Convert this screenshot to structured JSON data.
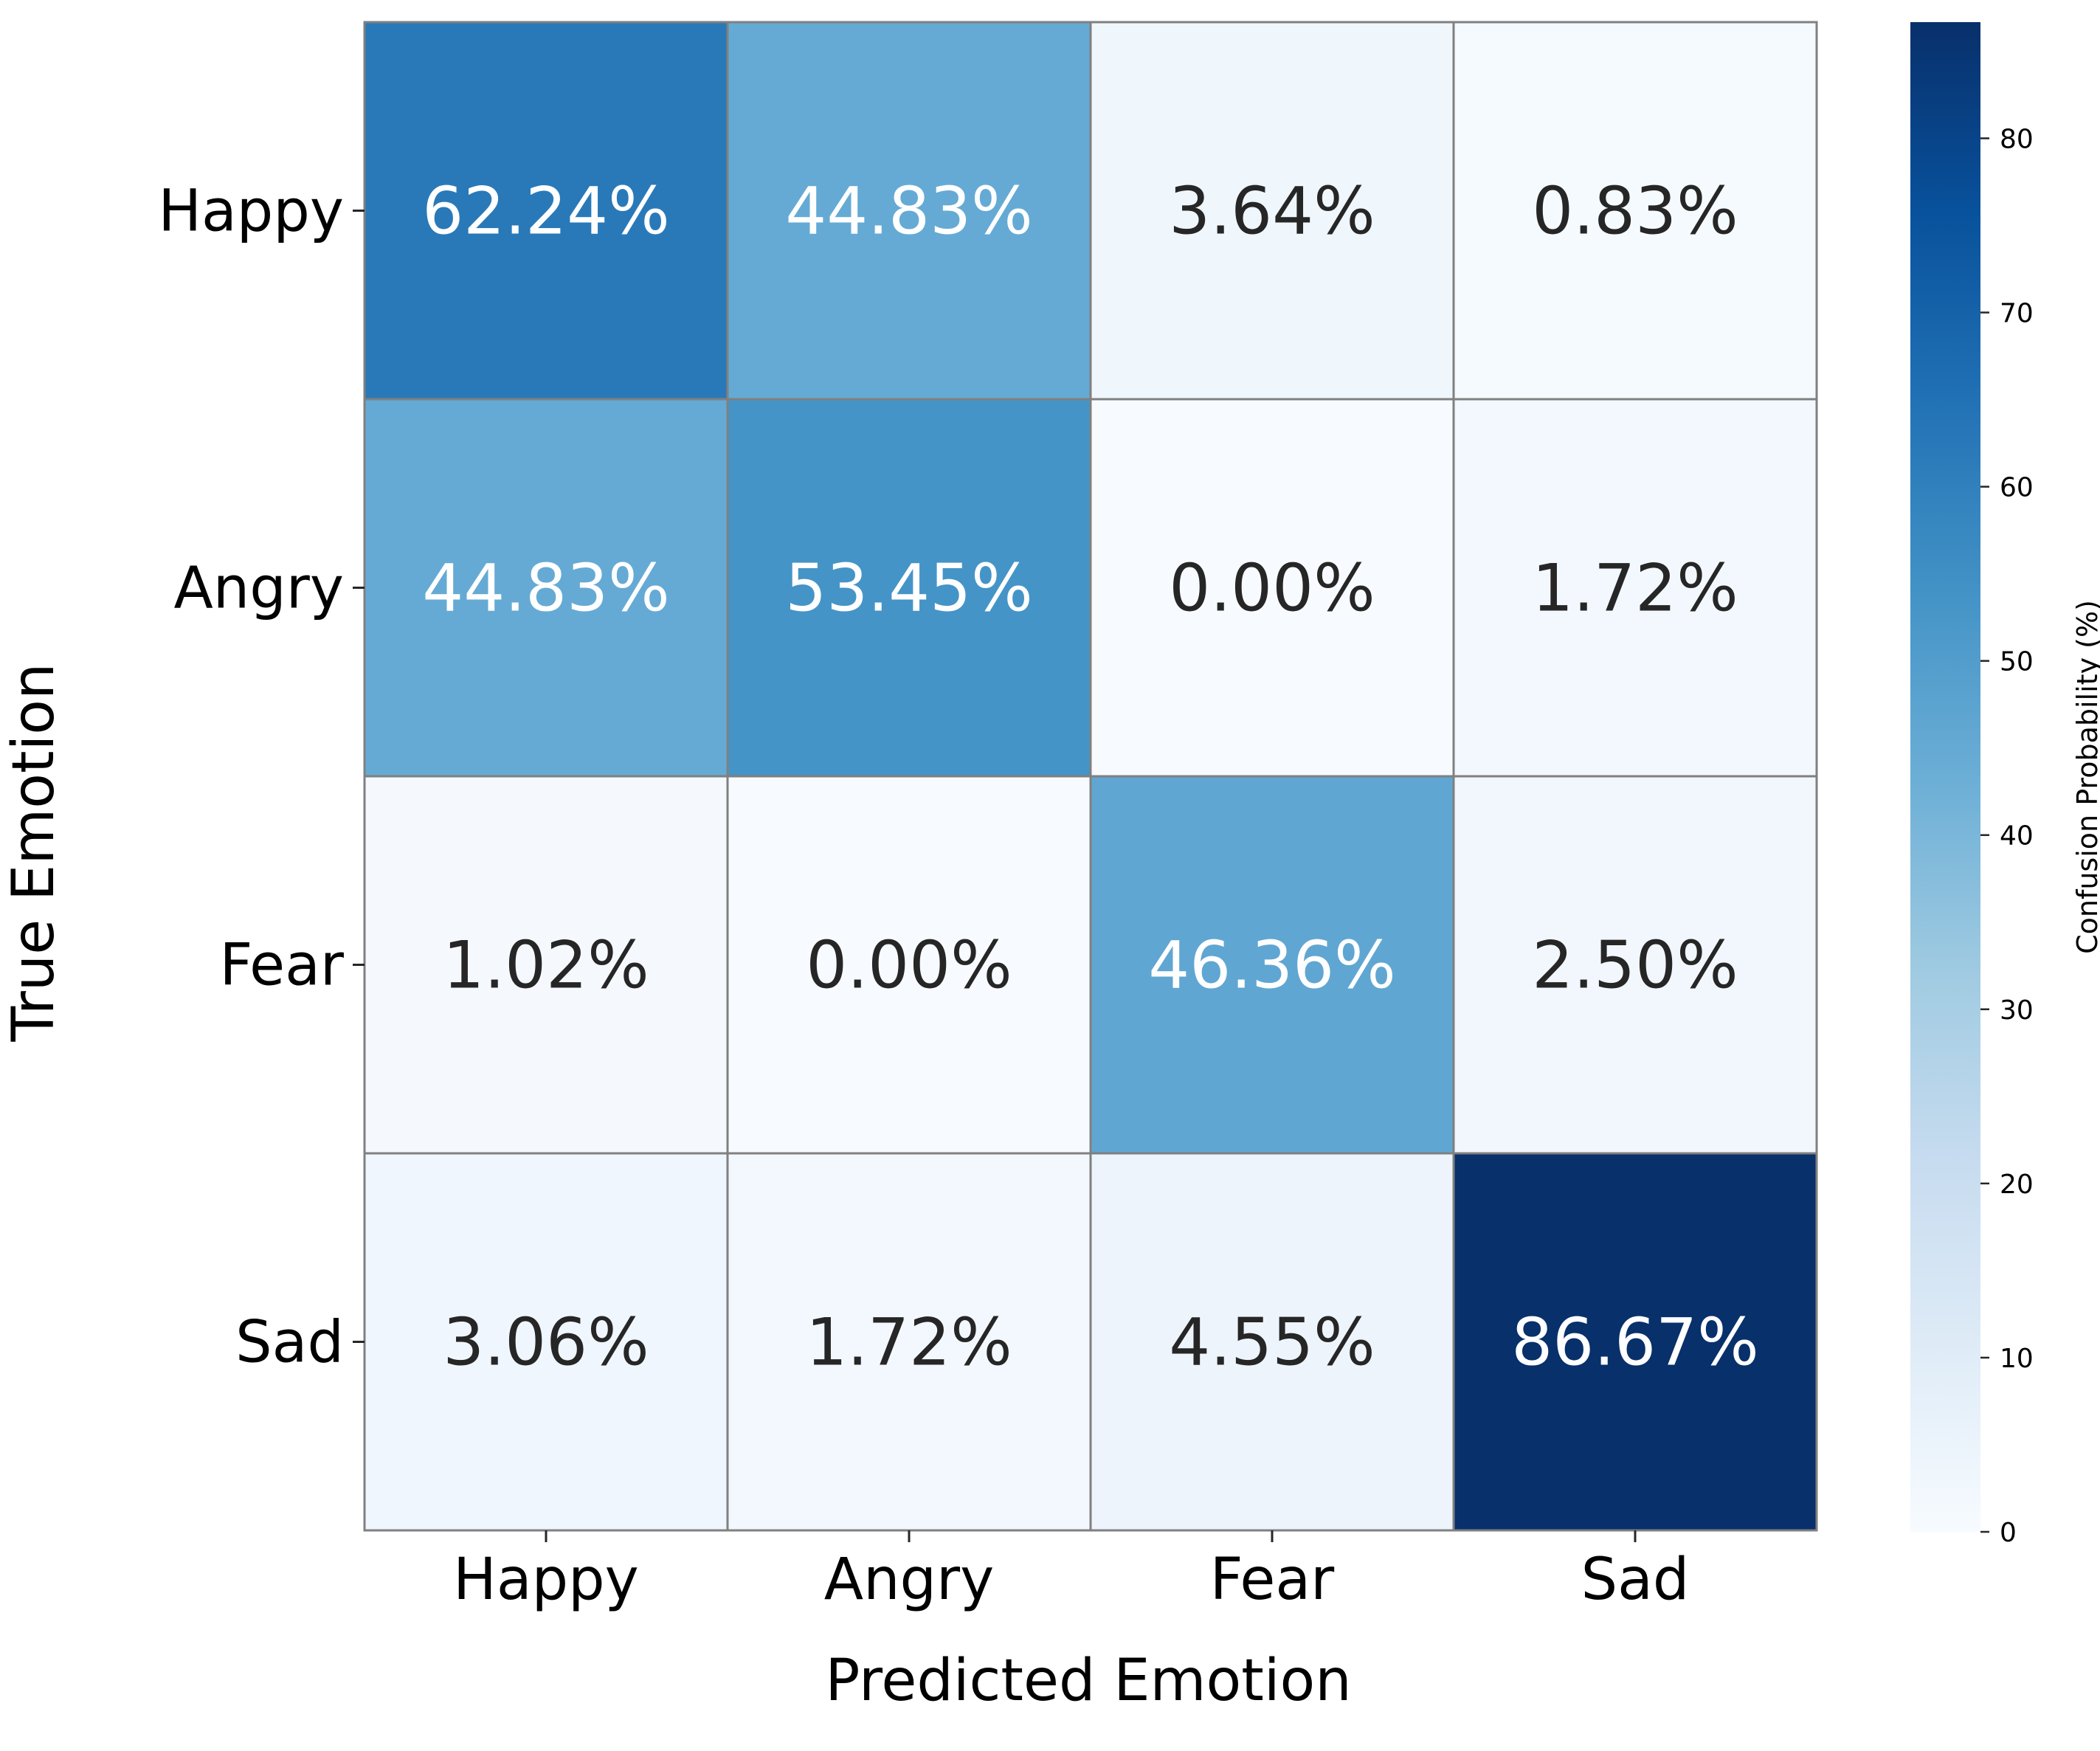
{
  "chart_data": {
    "type": "heatmap",
    "row_categories": [
      "Happy",
      "Angry",
      "Fear",
      "Sad"
    ],
    "col_categories": [
      "Happy",
      "Angry",
      "Fear",
      "Sad"
    ],
    "values": [
      [
        62.24,
        44.83,
        3.64,
        0.83
      ],
      [
        44.83,
        53.45,
        0.0,
        1.72
      ],
      [
        1.02,
        0.0,
        46.36,
        2.5
      ],
      [
        3.06,
        1.72,
        4.55,
        86.67
      ]
    ],
    "cell_labels": [
      [
        "62.24%",
        "44.83%",
        "3.64%",
        "0.83%"
      ],
      [
        "44.83%",
        "53.45%",
        "0.00%",
        "1.72%"
      ],
      [
        "1.02%",
        "0.00%",
        "46.36%",
        "2.50%"
      ],
      [
        "3.06%",
        "1.72%",
        "4.55%",
        "86.67%"
      ]
    ],
    "xlabel": "Predicted Emotion",
    "ylabel": "True Emotion",
    "colorbar": {
      "label": "Confusion Probability (%)",
      "range": [
        0,
        86.67
      ],
      "ticks": [
        0,
        10,
        20,
        30,
        40,
        50,
        60,
        70,
        80
      ],
      "tick_labels": [
        "0",
        "10",
        "20",
        "30",
        "40",
        "50",
        "60",
        "70",
        "80"
      ],
      "colormap": "Blues",
      "colors": [
        "#f7fbff",
        "#deebf7",
        "#c6dbef",
        "#9ecae1",
        "#6baed6",
        "#4292c6",
        "#2171b5",
        "#08519c",
        "#08306b"
      ]
    },
    "cell_border_color": "#808080",
    "text_color_dark": "#262626",
    "text_color_light": "#ffffff"
  }
}
